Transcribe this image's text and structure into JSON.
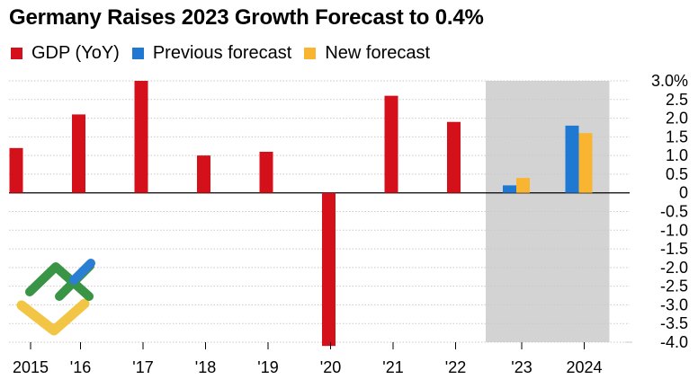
{
  "chart_data": {
    "type": "bar",
    "title": "Germany Raises 2023 Growth Forecast to 0.4%",
    "categories": [
      "2015",
      "'16",
      "'17",
      "'18",
      "'19",
      "'20",
      "'21",
      "'22",
      "'23",
      "2024"
    ],
    "series": [
      {
        "name": "GDP (YoY)",
        "color": "#d4101b",
        "values": [
          1.2,
          2.1,
          3.0,
          1.0,
          1.1,
          -4.1,
          2.6,
          1.9,
          null,
          null
        ]
      },
      {
        "name": "Previous forecast",
        "color": "#1f78d1",
        "values": [
          null,
          null,
          null,
          null,
          null,
          null,
          null,
          null,
          0.2,
          1.8
        ]
      },
      {
        "name": "New forecast",
        "color": "#f9b531",
        "values": [
          null,
          null,
          null,
          null,
          null,
          null,
          null,
          null,
          0.4,
          1.6
        ]
      }
    ],
    "y_ticks": [
      "3.0%",
      "2.5",
      "2.0",
      "1.5",
      "1.0",
      "0.5",
      "0",
      "-0.5",
      "-1.0",
      "-1.5",
      "-2.0",
      "-2.5",
      "-3.0",
      "-3.5",
      "-4.0"
    ],
    "ylim": [
      -4.0,
      3.0
    ],
    "y_step": 0.5,
    "shaded_categories": [
      "'23",
      "2024"
    ],
    "shade_color": "#d3d3d3",
    "legend_position": "top-left",
    "grid": true
  },
  "watermark": {
    "name": "logo"
  }
}
